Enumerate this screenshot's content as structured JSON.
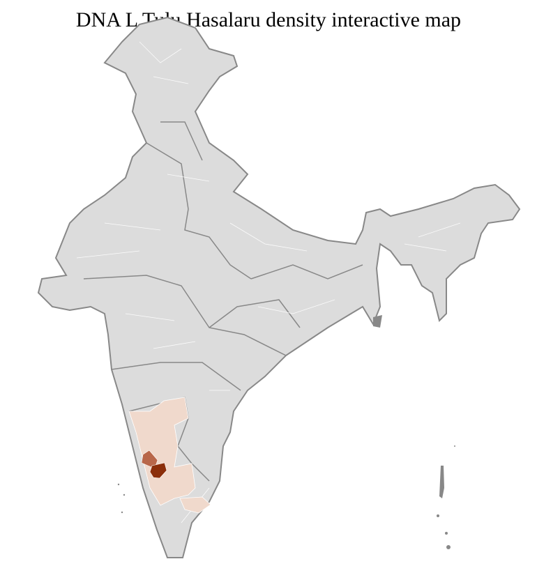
{
  "title": "DNA L Tulu Hasalaru density interactive map",
  "colors": {
    "land": "#dcdcdc",
    "state_border": "#888888",
    "district_border": "#ffffff",
    "density_low": "#f0d9cc",
    "density_medium": "#b8674a",
    "density_high": "#8b2e0a"
  }
}
